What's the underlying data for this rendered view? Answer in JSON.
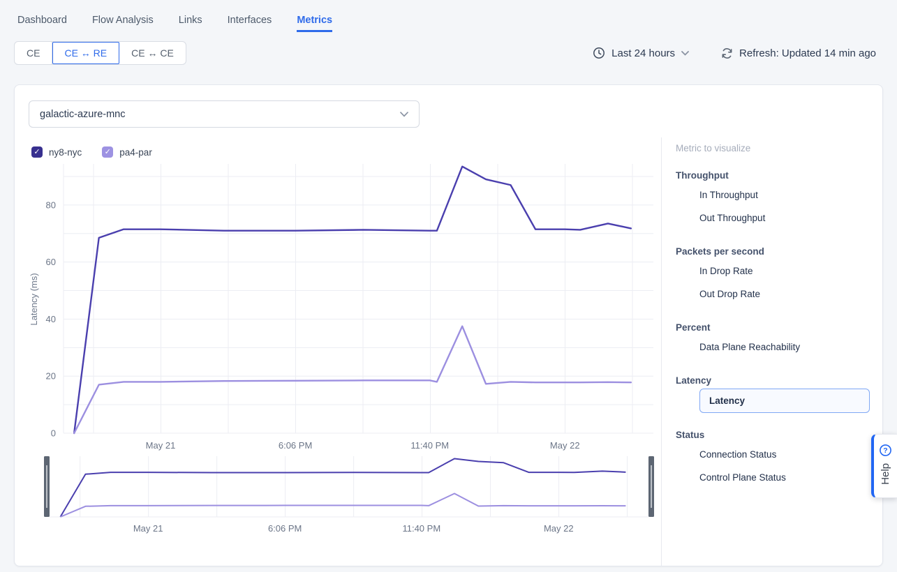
{
  "nav": {
    "tabs": [
      {
        "label": "Dashboard",
        "active": false
      },
      {
        "label": "Flow Analysis",
        "active": false
      },
      {
        "label": "Links",
        "active": false
      },
      {
        "label": "Interfaces",
        "active": false
      },
      {
        "label": "Metrics",
        "active": true
      }
    ]
  },
  "filters": {
    "segments": [
      {
        "label": "CE",
        "active": false
      },
      {
        "label": "CE ↔ RE",
        "active": true
      },
      {
        "label": "CE ↔ CE",
        "active": false
      }
    ],
    "time_range": {
      "icon": "clock-icon",
      "label": "Last 24 hours"
    },
    "refresh": {
      "icon": "refresh-icon",
      "label": "Refresh: Updated 14 min ago"
    }
  },
  "panel": {
    "device_select": {
      "value": "galactic-azure-mnc"
    },
    "series_toggles": [
      {
        "label": "ny8-nyc",
        "checked": true,
        "color": "#38308f"
      },
      {
        "label": "pa4-par",
        "checked": true,
        "color": "#9d92e2"
      }
    ]
  },
  "sidebar": {
    "title": "Metric to visualize",
    "groups": [
      {
        "label": "Throughput",
        "items": [
          {
            "label": "In Throughput",
            "selected": false
          },
          {
            "label": "Out Throughput",
            "selected": false
          }
        ]
      },
      {
        "label": "Packets per second",
        "items": [
          {
            "label": "In Drop Rate",
            "selected": false
          },
          {
            "label": "Out Drop Rate",
            "selected": false
          }
        ]
      },
      {
        "label": "Percent",
        "items": [
          {
            "label": "Data Plane Reachability",
            "selected": false
          }
        ]
      },
      {
        "label": "Latency",
        "items": [
          {
            "label": "Latency",
            "selected": true
          }
        ]
      },
      {
        "label": "Status",
        "items": [
          {
            "label": "Connection Status",
            "selected": false
          },
          {
            "label": "Control Plane Status",
            "selected": false
          }
        ]
      }
    ]
  },
  "help": {
    "icon": "help-icon",
    "label": "Help"
  },
  "colors": {
    "accent_blue": "#2f6bea",
    "help_blue": "#2166f3",
    "series_dark": "#4a3fae",
    "series_light": "#9c8fe0",
    "grid": "#ecedf3",
    "tick_text": "#6b7587",
    "brush_handle": "#5d6673"
  },
  "chart_data": {
    "type": "line",
    "title": "",
    "xlabel": "",
    "ylabel": "Latency (ms)",
    "ylim": [
      0,
      94
    ],
    "yticks": [
      0,
      20,
      40,
      60,
      80
    ],
    "ygrid_step": 10,
    "grid": true,
    "legend_position": "top-left",
    "xticks": [
      {
        "pos": 0.1645,
        "label": "May 21"
      },
      {
        "pos": 0.393,
        "label": "6:06 PM"
      },
      {
        "pos": 0.621,
        "label": "11:40 PM"
      },
      {
        "pos": 0.85,
        "label": "May 22"
      }
    ],
    "vgrid": [
      0.0,
      0.0509,
      0.1651,
      0.2793,
      0.3935,
      0.5077,
      0.6219,
      0.7361,
      0.8503,
      0.9645
    ],
    "series": [
      {
        "name": "ny8-nyc",
        "color": "#4a3fae",
        "points": [
          [
            0.018,
            0
          ],
          [
            0.06,
            68.5
          ],
          [
            0.102,
            71.5
          ],
          [
            0.164,
            71.5
          ],
          [
            0.272,
            71
          ],
          [
            0.393,
            71
          ],
          [
            0.509,
            71.3
          ],
          [
            0.621,
            71
          ],
          [
            0.633,
            71
          ],
          [
            0.676,
            93.5
          ],
          [
            0.716,
            89
          ],
          [
            0.758,
            87
          ],
          [
            0.8,
            71.5
          ],
          [
            0.85,
            71.5
          ],
          [
            0.876,
            71.3
          ],
          [
            0.923,
            73.5
          ],
          [
            0.962,
            71.8
          ]
        ]
      },
      {
        "name": "pa4-par",
        "color": "#9c8fe0",
        "points": [
          [
            0.018,
            0
          ],
          [
            0.06,
            17
          ],
          [
            0.102,
            18
          ],
          [
            0.164,
            18
          ],
          [
            0.272,
            18.3
          ],
          [
            0.393,
            18.4
          ],
          [
            0.509,
            18.5
          ],
          [
            0.621,
            18.5
          ],
          [
            0.633,
            18
          ],
          [
            0.676,
            37.5
          ],
          [
            0.716,
            17.3
          ],
          [
            0.758,
            18
          ],
          [
            0.8,
            17.8
          ],
          [
            0.85,
            17.8
          ],
          [
            0.876,
            17.8
          ],
          [
            0.923,
            17.9
          ],
          [
            0.962,
            17.8
          ]
        ]
      }
    ],
    "brush": {
      "shows": "full-range overview with drag handles"
    }
  }
}
